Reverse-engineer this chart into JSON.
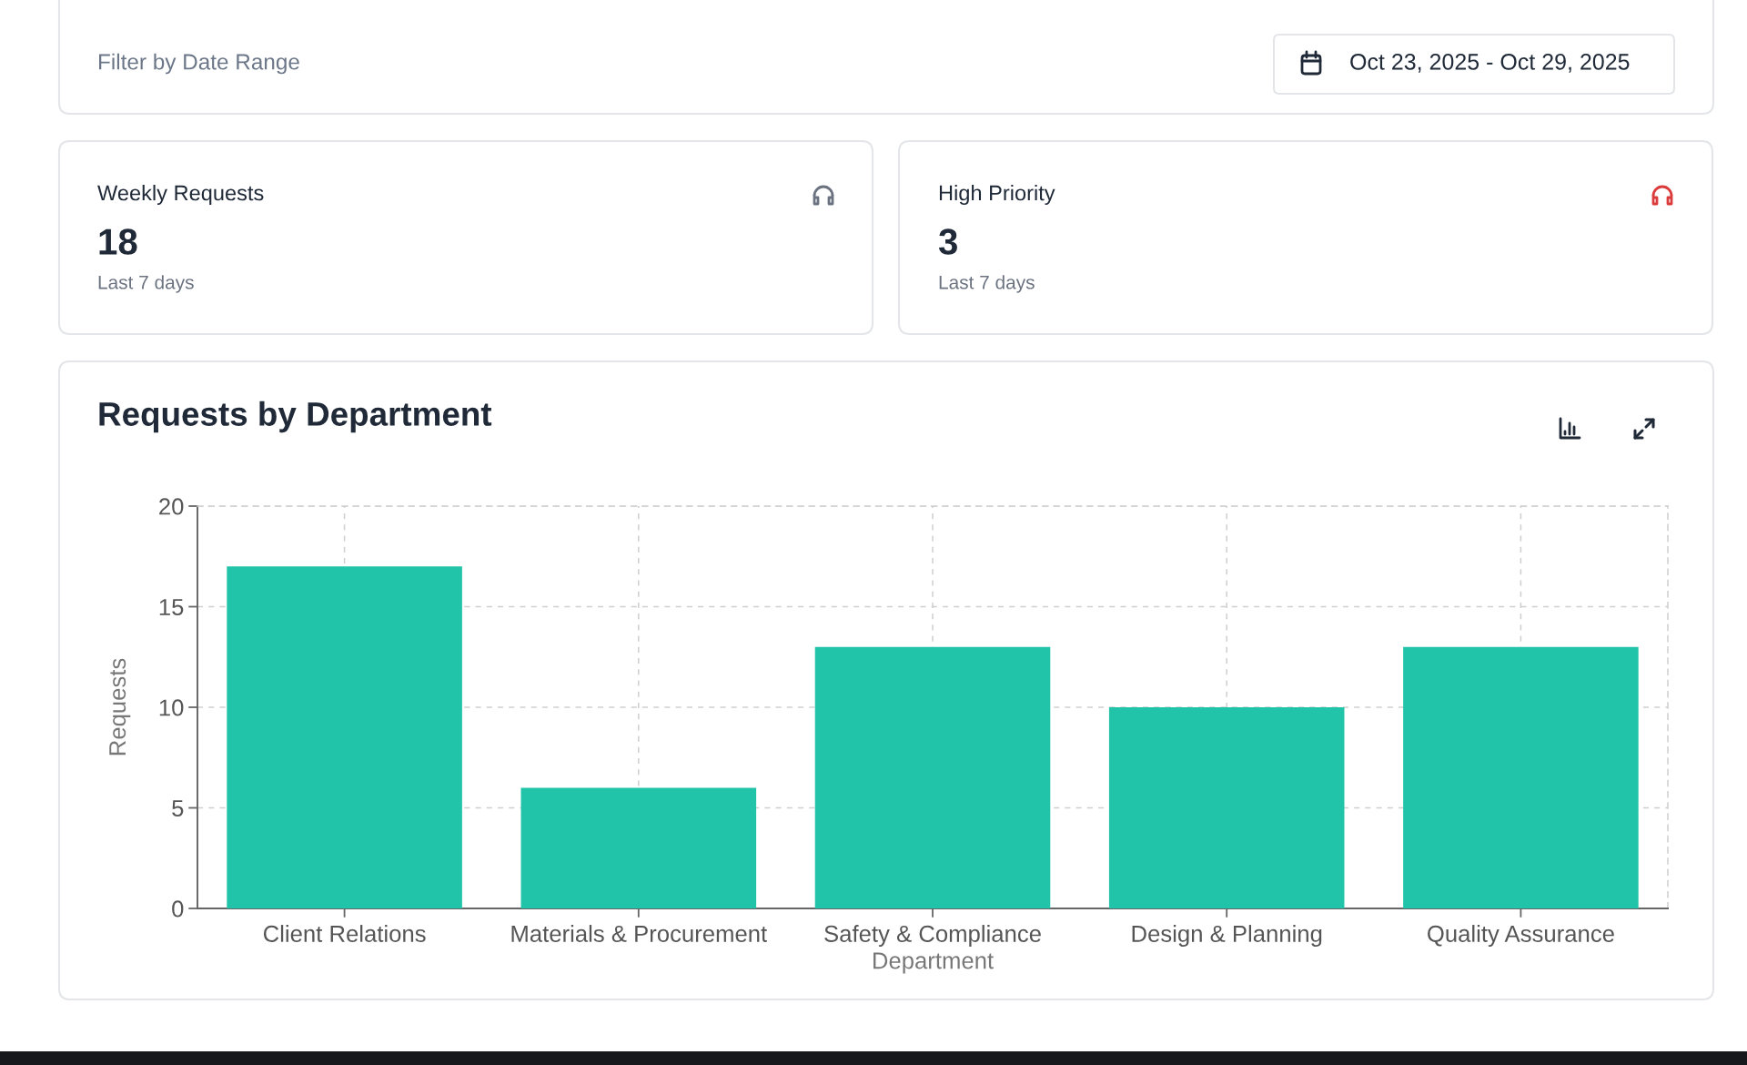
{
  "chart_data": [
    {
      "type": "other",
      "title": "Filter by Date Range",
      "annotations": [
        "Oct 23, 2025 - Oct 29, 2025"
      ]
    },
    {
      "type": "other",
      "title": "Weekly Requests",
      "annotations": [
        "18",
        "Last 7 days"
      ]
    },
    {
      "type": "other",
      "title": "High Priority",
      "annotations": [
        "3",
        "Last 7 days"
      ]
    },
    {
      "type": "bar",
      "title": "Requests by Department",
      "xlabel": "Department",
      "ylabel": "Requests",
      "categories": [
        "Client Relations",
        "Materials & Procurement",
        "Safety & Compliance",
        "Design & Planning",
        "Quality Assurance"
      ],
      "values": [
        17,
        6,
        13,
        10,
        13
      ],
      "color": "#22c4a9",
      "ylim": [
        0,
        20
      ],
      "yticks": [
        0,
        5,
        10,
        15,
        20
      ],
      "grid": true
    }
  ]
}
